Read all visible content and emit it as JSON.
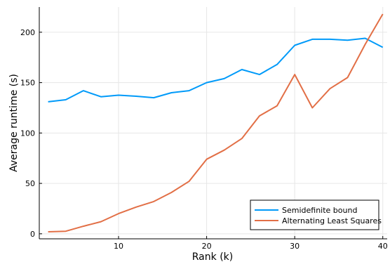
{
  "chart_data": {
    "type": "line",
    "xlabel": "Rank (k)",
    "ylabel": "Average runtime (s)",
    "xlim": [
      1,
      40.5
    ],
    "ylim": [
      -5,
      225
    ],
    "xticks": [
      10,
      20,
      30,
      40
    ],
    "yticks": [
      0,
      50,
      100,
      150,
      200
    ],
    "grid": true,
    "legend_position": "bottom-right",
    "x": [
      2,
      4,
      6,
      8,
      10,
      12,
      14,
      16,
      18,
      20,
      22,
      24,
      26,
      28,
      30,
      32,
      34,
      36,
      38,
      40
    ],
    "series": [
      {
        "name": "Semidefinite bound",
        "color": "#009af9",
        "values": [
          131,
          133,
          142,
          136,
          137.5,
          136.5,
          135,
          140,
          142,
          150,
          154,
          163,
          158,
          168,
          187,
          193,
          193,
          192,
          194,
          185
        ]
      },
      {
        "name": "Alternating Least Squares",
        "color": "#e26f46",
        "values": [
          2,
          2.5,
          7.5,
          12,
          20,
          26.5,
          32,
          41,
          52,
          74,
          83,
          94.5,
          117,
          127,
          158,
          125,
          144,
          155,
          188,
          218
        ]
      }
    ]
  }
}
